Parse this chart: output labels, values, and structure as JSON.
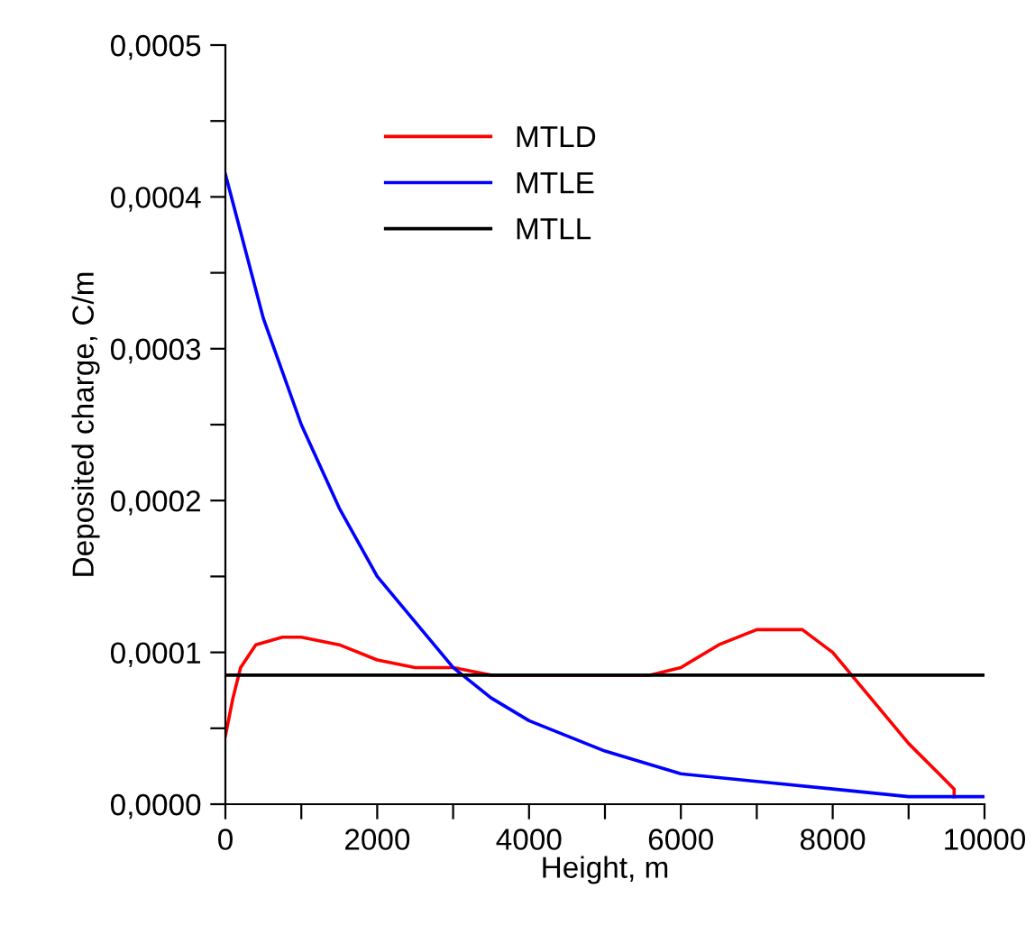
{
  "chart_data": {
    "type": "line",
    "xlabel": "Height, m",
    "ylabel": "Deposited charge, C/m",
    "xlim": [
      0,
      10000
    ],
    "ylim": [
      0,
      0.0005
    ],
    "xticks": [
      0,
      {
        "value": 1000,
        "label": null
      },
      2000,
      {
        "value": 3000,
        "label": null
      },
      4000,
      {
        "value": 5000,
        "label": null
      },
      6000,
      {
        "value": 7000,
        "label": null
      },
      8000,
      {
        "value": 9000,
        "label": null
      },
      10000
    ],
    "yticks": [
      {
        "value": 0,
        "label": "0,0000"
      },
      {
        "value": 5e-05,
        "label": null
      },
      {
        "value": 0.0001,
        "label": "0,0001"
      },
      {
        "value": 0.00015,
        "label": null
      },
      {
        "value": 0.0002,
        "label": "0,0002"
      },
      {
        "value": 0.00025,
        "label": null
      },
      {
        "value": 0.0003,
        "label": "0,0003"
      },
      {
        "value": 0.00035,
        "label": null
      },
      {
        "value": 0.0004,
        "label": "0,0004"
      },
      {
        "value": 0.00045,
        "label": null
      },
      {
        "value": 0.0005,
        "label": "0,0005"
      }
    ],
    "legend": "top",
    "grid": false,
    "marker": "none",
    "line_style": "solid",
    "series": [
      {
        "name": "MTLD",
        "color": "#ff0000",
        "x": [
          0,
          100,
          200,
          400,
          750,
          1000,
          1500,
          2000,
          2500,
          3000,
          3500,
          4000,
          5600,
          6000,
          6500,
          7000,
          7300,
          7600,
          8000,
          8500,
          9000,
          9400,
          9600,
          9600
        ],
        "values": [
          4.5e-05,
          7e-05,
          9e-05,
          0.000105,
          0.00011,
          0.00011,
          0.000105,
          9.5e-05,
          9e-05,
          9e-05,
          8.5e-05,
          8.5e-05,
          8.5e-05,
          9e-05,
          0.000105,
          0.000115,
          0.000115,
          0.000115,
          0.0001,
          7e-05,
          4e-05,
          2e-05,
          1e-05,
          5e-06
        ]
      },
      {
        "name": "MTLE",
        "color": "#0000ff",
        "x": [
          0,
          500,
          1000,
          1500,
          2000,
          2500,
          3000,
          3500,
          4000,
          5000,
          6000,
          7000,
          8000,
          9000,
          10000
        ],
        "values": [
          0.000415,
          0.00032,
          0.00025,
          0.000195,
          0.00015,
          0.00012,
          9e-05,
          7e-05,
          5.5e-05,
          3.5e-05,
          2e-05,
          1.5e-05,
          1e-05,
          5e-06,
          5e-06
        ]
      },
      {
        "name": "MTLL",
        "color": "#000000",
        "x": [
          0,
          10000
        ],
        "values": [
          8.5e-05,
          8.5e-05
        ]
      }
    ]
  }
}
